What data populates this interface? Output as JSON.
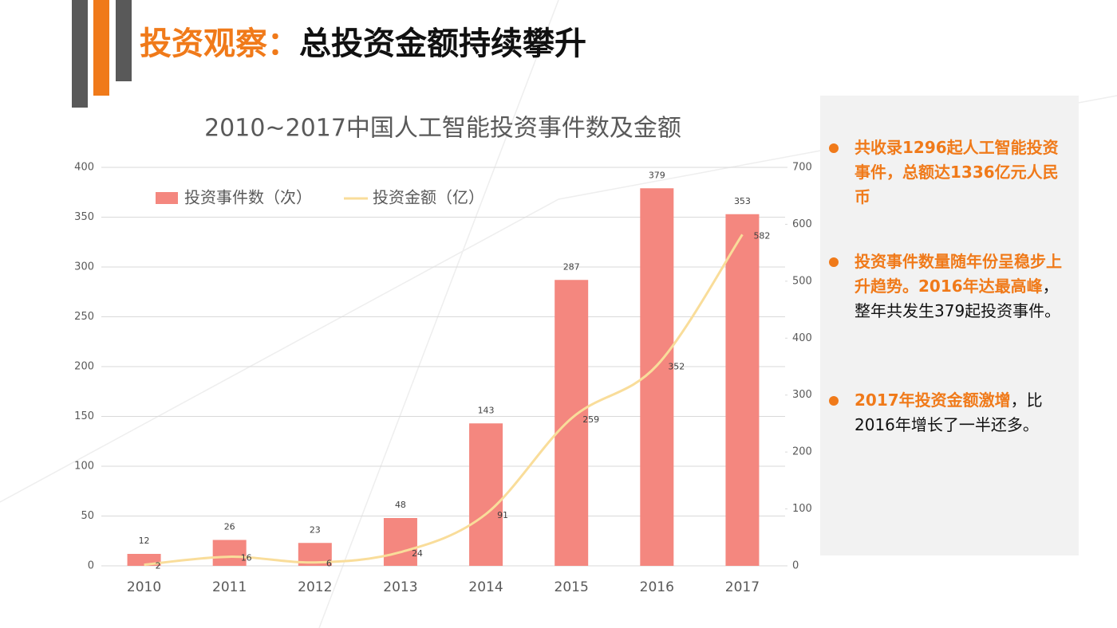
{
  "header": {
    "title": [
      {
        "text": "投资观察：",
        "color": "#f07a1a"
      },
      {
        "text": "总投资金额持续攀升",
        "color": "#111111"
      }
    ]
  },
  "chart_data": {
    "type": "bar-line",
    "title": "2010~2017中国人工智能投资事件数及金额",
    "categories": [
      "2010",
      "2011",
      "2012",
      "2013",
      "2014",
      "2015",
      "2016",
      "2017"
    ],
    "series": [
      {
        "name": "投资事件数（次）",
        "type": "bar",
        "color": "#f4877f",
        "values": [
          12,
          26,
          23,
          48,
          143,
          287,
          379,
          353
        ]
      },
      {
        "name": "投资金额（亿）",
        "type": "line",
        "axis": "y2",
        "color": "#f9dd9a",
        "values": [
          2,
          16,
          6,
          24,
          91,
          259,
          352,
          582
        ]
      }
    ],
    "ylim": [
      0,
      400
    ],
    "yticks": [
      0,
      50,
      100,
      150,
      200,
      250,
      300,
      350,
      400
    ],
    "y2lim": [
      0,
      700
    ],
    "y2ticks": [
      0,
      100,
      200,
      300,
      400,
      500,
      600,
      700
    ],
    "grid": true,
    "legend": "top-left"
  },
  "notes": [
    [
      {
        "text": "共收录1296起人工智能投资事件，总额达1336亿元人民币",
        "color": "#f07a1a"
      }
    ],
    [
      {
        "text": "投资事件数量随年份呈稳步上升趋势。2016年达最高峰",
        "color": "#f07a1a"
      },
      {
        "text": "，整年共发生379起投资事件。",
        "color": "#111111"
      }
    ],
    [
      {
        "text": "2017年投资金额激增",
        "color": "#f07a1a"
      },
      {
        "text": "，比2016年增长了一半还多。",
        "color": "#111111"
      }
    ]
  ]
}
